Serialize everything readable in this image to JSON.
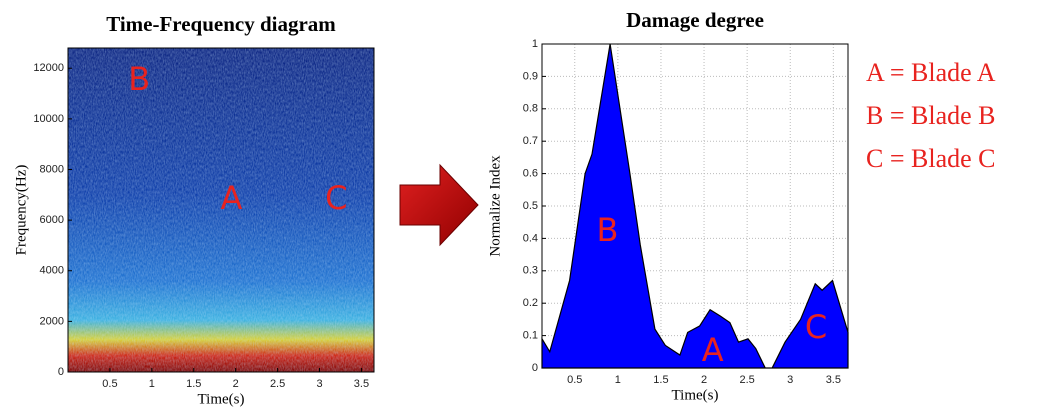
{
  "chart_data": [
    {
      "type": "spectrogram",
      "title": "Time-Frequency diagram",
      "xlabel": "Time(s)",
      "ylabel": "Frequency(Hz)",
      "xlim": [
        0,
        3.65
      ],
      "xticks": [
        0.5,
        1,
        1.5,
        2,
        2.5,
        3,
        3.5
      ],
      "ylim": [
        0,
        12800
      ],
      "yticks": [
        0,
        2000,
        4000,
        6000,
        8000,
        10000,
        12000
      ],
      "grid": false,
      "annotations": [
        {
          "text": "B",
          "x": 0.85,
          "y": 11500
        },
        {
          "text": "A",
          "x": 1.95,
          "y": 6800
        },
        {
          "text": "C",
          "x": 3.2,
          "y": 6800
        }
      ]
    },
    {
      "type": "area",
      "title": "Damage degree",
      "xlabel": "Time(s)",
      "ylabel": "Normalize Index",
      "color": "#0000ff",
      "x": [
        0.12,
        0.21,
        0.44,
        0.62,
        0.7,
        0.91,
        1.14,
        1.26,
        1.43,
        1.55,
        1.72,
        1.81,
        1.95,
        2.07,
        2.19,
        2.3,
        2.4,
        2.51,
        2.6,
        2.71,
        2.79,
        2.94,
        3.12,
        3.29,
        3.37,
        3.49,
        3.58,
        3.67
      ],
      "values": [
        0.09,
        0.05,
        0.27,
        0.6,
        0.66,
        1.0,
        0.6,
        0.38,
        0.12,
        0.07,
        0.04,
        0.11,
        0.13,
        0.18,
        0.16,
        0.14,
        0.08,
        0.09,
        0.06,
        0.0,
        0.0,
        0.08,
        0.15,
        0.26,
        0.24,
        0.27,
        0.19,
        0.11
      ],
      "xlim": [
        0.12,
        3.67
      ],
      "xticks": [
        0.5,
        1,
        1.5,
        2,
        2.5,
        3,
        3.5
      ],
      "ylim": [
        0,
        1
      ],
      "yticks": [
        0,
        0.1,
        0.2,
        0.3,
        0.4,
        0.5,
        0.6,
        0.7,
        0.8,
        0.9,
        1
      ],
      "grid": true,
      "annotations": [
        {
          "text": "B",
          "x": 0.88,
          "y": 0.42
        },
        {
          "text": "A",
          "x": 2.1,
          "y": 0.05
        },
        {
          "text": "C",
          "x": 3.3,
          "y": 0.12
        }
      ],
      "legend": [
        "A = Blade A",
        "B = Blade B",
        "C = Blade C"
      ]
    }
  ]
}
